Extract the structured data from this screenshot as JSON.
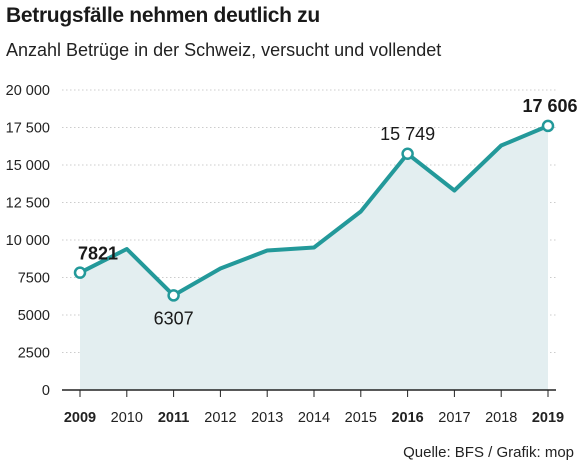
{
  "title": "Betrugsfälle nehmen deutlich zu",
  "subtitle": "Anzahl Betrüge in der Schweiz, versucht und vollendet",
  "source": "Quelle: BFS / Grafik: mop",
  "colors": {
    "line": "#23999a",
    "area": "#e3eef0",
    "grid": "#cccccc",
    "axis": "#222222",
    "marker_fill": "#ffffff"
  },
  "chart_data": {
    "type": "area",
    "title": "Betrugsfälle nehmen deutlich zu",
    "subtitle": "Anzahl Betrüge in der Schweiz, versucht und vollendet",
    "xlabel": "",
    "ylabel": "",
    "categories": [
      "2009",
      "2010",
      "2011",
      "2012",
      "2013",
      "2014",
      "2015",
      "2016",
      "2017",
      "2018",
      "2019"
    ],
    "bold_categories": [
      "2009",
      "2011",
      "2016",
      "2019"
    ],
    "series": [
      {
        "values": [
          7821,
          9400,
          6307,
          8100,
          9300,
          9500,
          11900,
          15749,
          13300,
          16300,
          17606
        ]
      }
    ],
    "ylim": [
      0,
      20000
    ],
    "yticks": [
      0,
      2500,
      5000,
      7500,
      10000,
      12500,
      15000,
      17500,
      20000
    ],
    "ytick_labels": [
      "0",
      "2500",
      "5000",
      "7500",
      "10 000",
      "12 500",
      "15 000",
      "17 500",
      "20 000"
    ],
    "grid": "horizontal dotted",
    "annotations": [
      {
        "category": "2009",
        "text": "7821",
        "bold": true
      },
      {
        "category": "2011",
        "text": "6307",
        "bold": false
      },
      {
        "category": "2016",
        "text": "15 749",
        "bold": false
      },
      {
        "category": "2019",
        "text": "17 606",
        "bold": true
      }
    ]
  }
}
